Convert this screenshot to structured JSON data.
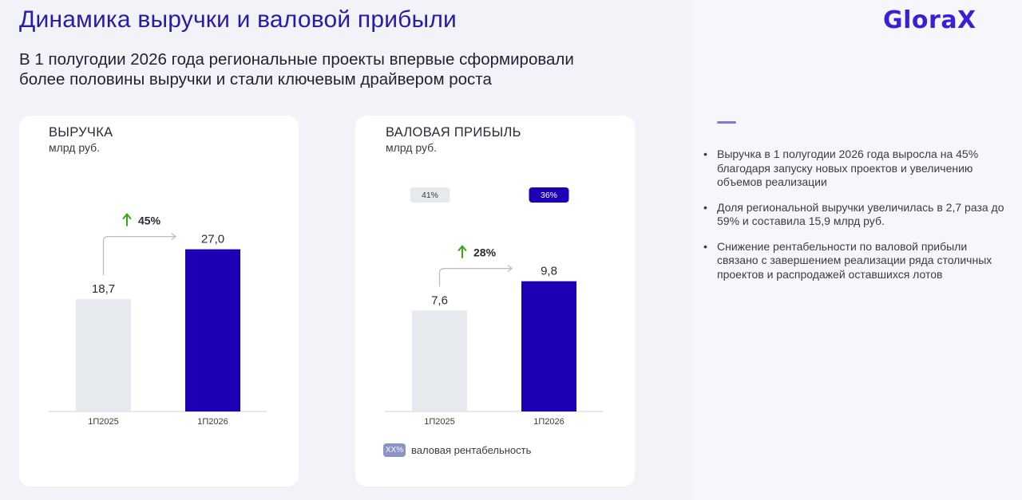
{
  "page": {
    "title": "Динамика выручки и валовой прибыли",
    "subtitle_lines": [
      "В 1 полугодии 2026 года региональные проекты впервые сформировали",
      "более половины выручки и стали ключевым драйвером роста"
    ],
    "logo": "GloraX"
  },
  "colors": {
    "accent": "#2a1aa8",
    "bar_prev": "#e6e9ee",
    "bar_curr": "#1e00b4",
    "growth_arrow": "#3aa614",
    "badge_prev_bg": "#e6e9ee",
    "badge_curr_bg": "#1e00b4"
  },
  "icons": [
    "growth-up-arrow-icon",
    "connector-arrow-icon"
  ],
  "chart_data": [
    {
      "type": "bar",
      "title": "ВЫРУЧКА",
      "unit": "млрд руб.",
      "categories": [
        "1П2025",
        "1П2026"
      ],
      "values": [
        18.7,
        27.0
      ],
      "value_labels": [
        "18,7",
        "27,0"
      ],
      "growth_label": "45%",
      "ylim": [
        0,
        30
      ]
    },
    {
      "type": "bar",
      "title": "ВАЛОВАЯ ПРИБЫЛЬ",
      "unit": "млрд руб.",
      "categories": [
        "1П2025",
        "1П2026"
      ],
      "values": [
        7.6,
        9.8
      ],
      "value_labels": [
        "7,6",
        "9,8"
      ],
      "growth_label": "28%",
      "margins": [
        "41%",
        "36%"
      ],
      "legend": {
        "swatch": "XX%",
        "label": "валовая рентабельность"
      },
      "ylim": [
        0,
        12
      ]
    }
  ],
  "bullets": [
    "Выручка в 1 полугодии 2026 года выросла на 45% благодаря запуску новых проектов и увеличению объемов реализации",
    "Доля региональной выручки увеличилась в 2,7 раза до 59% и составила 15,9 млрд руб.",
    "Снижение рентабельности по валовой прибыли связано с завершением реализации ряда столичных проектов и распродажей оставшихся лотов"
  ]
}
